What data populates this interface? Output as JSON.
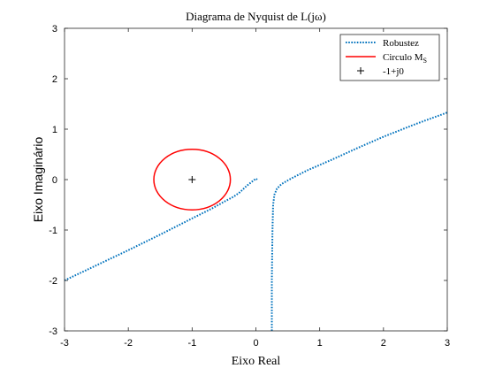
{
  "chart_data": {
    "type": "line",
    "title": "Diagrama de Nyquist de L(jω)",
    "xlabel": "Eixo Real",
    "ylabel": "Eixo Imaginário",
    "xlim": [
      -3,
      3
    ],
    "ylim": [
      -3,
      3
    ],
    "xticks": [
      -3,
      -2,
      -1,
      0,
      1,
      2,
      3
    ],
    "yticks": [
      -3,
      -2,
      -1,
      0,
      1,
      2,
      3
    ],
    "grid": false,
    "legend_position": "top-right",
    "series": [
      {
        "name": "Robustez",
        "style": "dotted",
        "color": "#0072BD",
        "branches": [
          {
            "x": [
              -3.0,
              -2.5,
              -2.0,
              -1.5,
              -1.0,
              -0.7,
              -0.5,
              -0.35,
              -0.25,
              -0.15,
              -0.08,
              -0.03,
              0.0,
              0.02
            ],
            "y": [
              -2.0,
              -1.7,
              -1.4,
              -1.09,
              -0.77,
              -0.58,
              -0.44,
              -0.34,
              -0.25,
              -0.13,
              -0.06,
              -0.01,
              0.02,
              0.0
            ]
          },
          {
            "x": [
              0.25,
              0.25,
              0.26,
              0.27,
              0.29,
              0.33,
              0.4,
              0.55,
              0.8,
              1.2,
              1.6,
              2.0,
              2.5,
              3.0
            ],
            "y": [
              -3.0,
              -2.0,
              -1.0,
              -0.5,
              -0.3,
              -0.18,
              -0.09,
              0.02,
              0.18,
              0.4,
              0.63,
              0.85,
              1.1,
              1.33
            ]
          }
        ]
      },
      {
        "name": "Circulo M",
        "name_subscript": "S",
        "style": "solid",
        "color": "#FF0000",
        "type": "circle",
        "center": [
          -1,
          0
        ],
        "radius": 0.6
      },
      {
        "name": "-1+j0",
        "style": "marker",
        "marker": "+",
        "color": "#000000",
        "x": [
          -1
        ],
        "y": [
          0
        ]
      }
    ]
  }
}
